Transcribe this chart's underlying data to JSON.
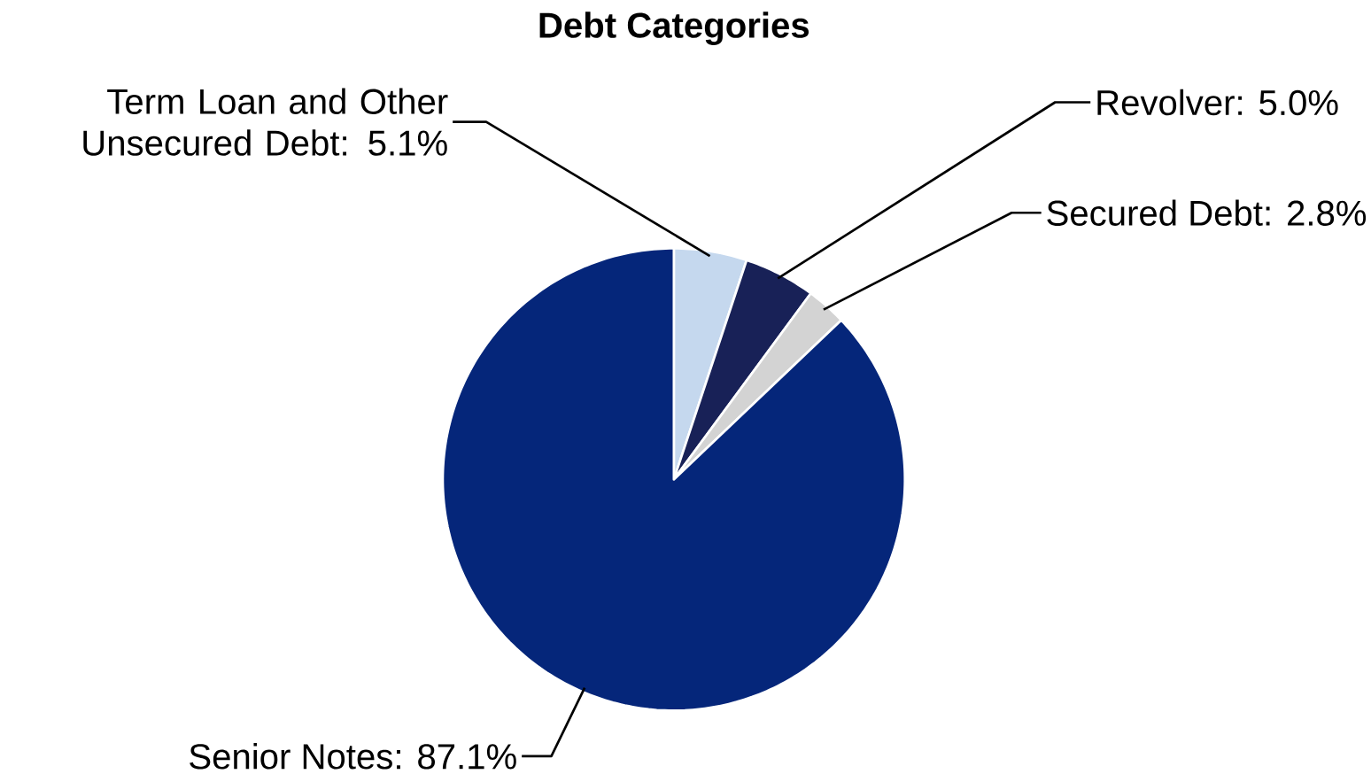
{
  "chart_data": {
    "type": "pie",
    "title": "Debt Categories",
    "categories": [
      "Term Loan and Other Unsecured Debt",
      "Revolver",
      "Secured Debt",
      "Senior Notes"
    ],
    "values": [
      5.1,
      5.0,
      2.8,
      87.1
    ],
    "colors": [
      "#c5d8ee",
      "#182157",
      "#d3d3d3",
      "#05267a"
    ],
    "value_labels": [
      ": 5.1%",
      ": 5.0%",
      ": 2.8%",
      ": 87.1%"
    ]
  }
}
